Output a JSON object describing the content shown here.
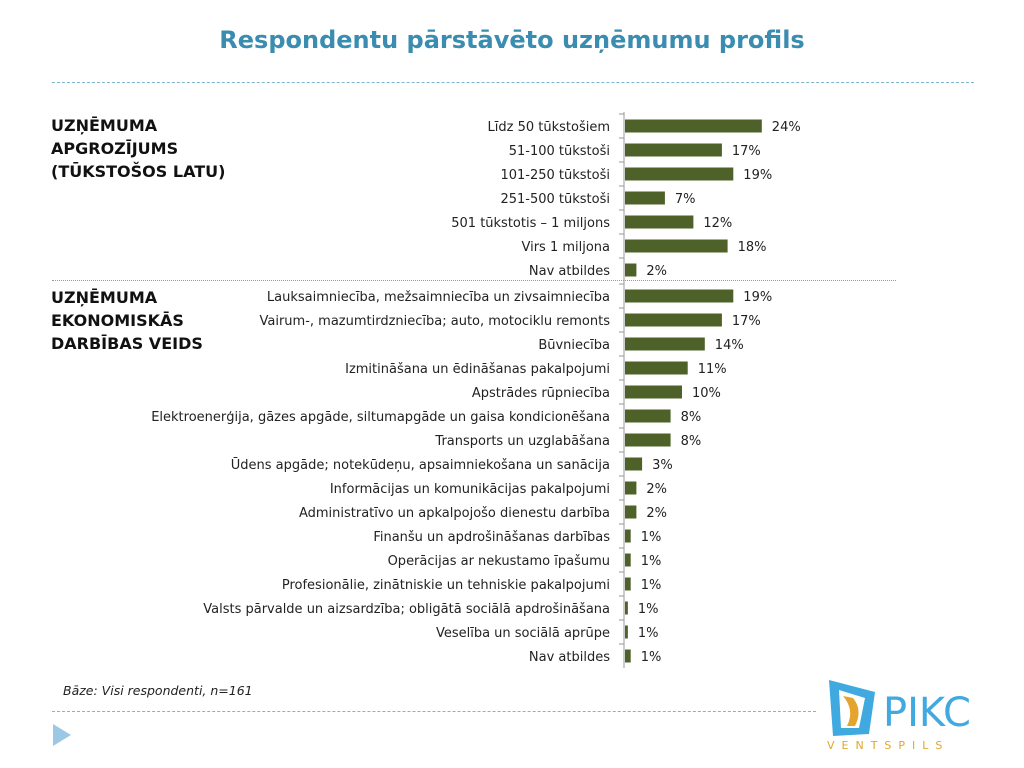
{
  "title": "Respondentu pārstāvēto uzņēmumu profils",
  "sections": [
    {
      "title_lines": [
        "UZŅĒMUMA",
        "APGROZĪJUMS",
        "(TŪKSTOŠOS LATU)"
      ]
    },
    {
      "title_lines": [
        "UZŅĒMUMA",
        "EKONOMISKĀS",
        "DARBĪBAS VEIDS"
      ]
    }
  ],
  "chart_data": [
    {
      "type": "bar",
      "orientation": "horizontal",
      "categories": [
        "Līdz 50 tūkstošiem",
        "51-100 tūkstoši",
        "101-250 tūkstoši",
        "251-500 tūkstoši",
        "501 tūkstotis – 1 miljons",
        "Virs 1 miljona",
        "Nav atbildes"
      ],
      "values": [
        24,
        17,
        19,
        7,
        12,
        18,
        2
      ],
      "value_labels": [
        "24%",
        "17%",
        "19%",
        "7%",
        "12%",
        "18%",
        "2%"
      ],
      "unit": "%",
      "bar_color": "#4e6128"
    },
    {
      "type": "bar",
      "orientation": "horizontal",
      "categories": [
        "Lauksaimniecība, mežsaimniecība un zivsaimniecība",
        "Vairum-, mazumtirdzniecība; auto, motociklu remonts",
        "Būvniecība",
        "Izmitināšana un ēdināšanas pakalpojumi",
        "Apstrādes rūpniecība",
        "Elektroenerģija, gāzes apgāde, siltumapgāde un gaisa kondicionēšana",
        "Transports un uzglabāšana",
        "Ūdens apgāde; notekūdeņu, apsaimniekošana un sanācija",
        "Informācijas un komunikācijas pakalpojumi",
        "Administratīvo un apkalpojošo dienestu darbība",
        "Finanšu un apdrošināšanas darbības",
        "Operācijas ar nekustamo īpašumu",
        "Profesionālie, zinātniskie un tehniskie pakalpojumi",
        "Valsts pārvalde un aizsardzība; obligātā sociālā apdrošināšana",
        "Veselība un sociālā aprūpe",
        "Nav atbildes"
      ],
      "values": [
        19,
        17,
        14,
        11,
        10,
        8,
        8,
        3,
        2,
        2,
        1,
        1,
        1,
        0.5,
        0.5,
        1
      ],
      "value_labels": [
        "19%",
        "17%",
        "14%",
        "11%",
        "10%",
        "8%",
        "8%",
        "3%",
        "2%",
        "2%",
        "1%",
        "1%",
        "1%",
        "1%",
        "1%",
        "1%"
      ],
      "unit": "%",
      "bar_color": "#4e6128"
    }
  ],
  "base_note": "Bāze: Visi respondenti, n=161",
  "logo": {
    "text": "PIKC",
    "subtext": "VENTSPILS",
    "color": "#3fa9e0",
    "subcolor": "#e3a52c"
  },
  "colors": {
    "title": "#3a8cb0",
    "bar": "#4e6128",
    "dash": "#7fb5d0"
  }
}
